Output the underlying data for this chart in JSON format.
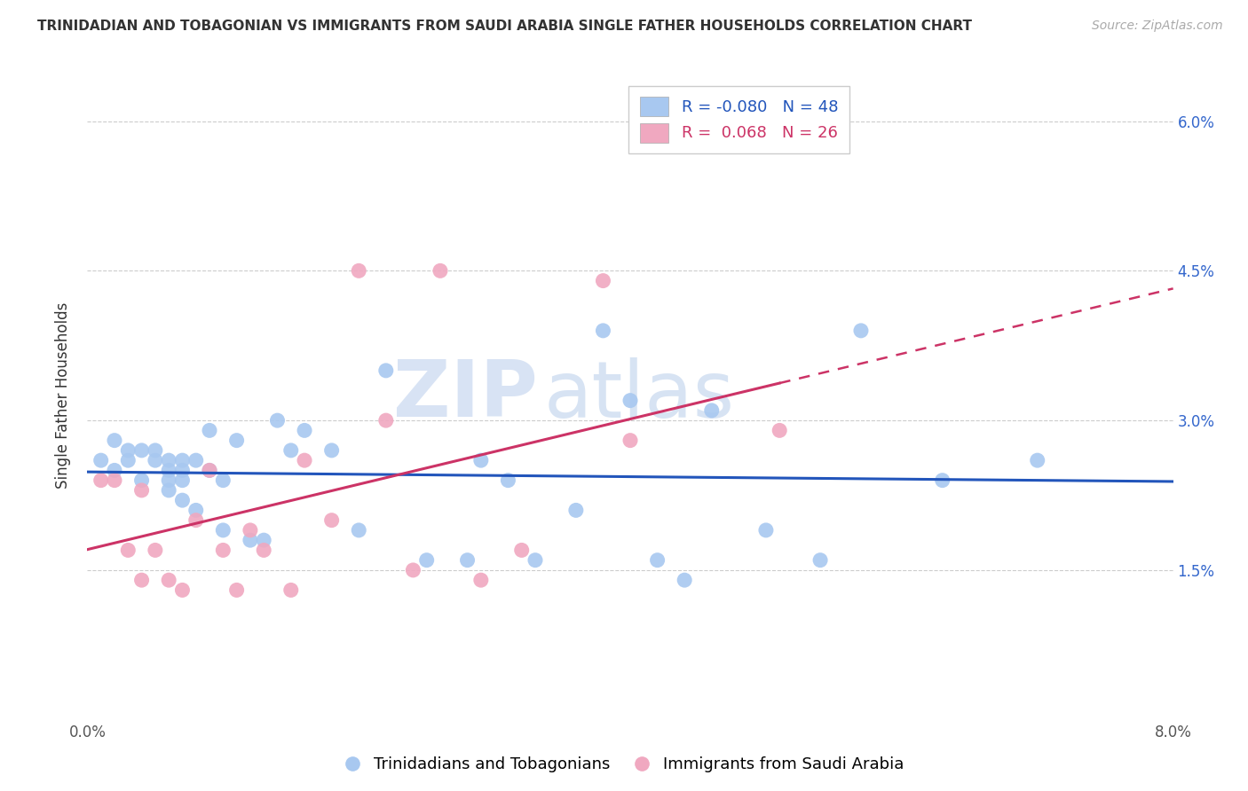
{
  "title": "TRINIDADIAN AND TOBAGONIAN VS IMMIGRANTS FROM SAUDI ARABIA SINGLE FATHER HOUSEHOLDS CORRELATION CHART",
  "source": "Source: ZipAtlas.com",
  "ylabel": "Single Father Households",
  "blue_R": -0.08,
  "blue_N": 48,
  "pink_R": 0.068,
  "pink_N": 26,
  "blue_color": "#a8c8f0",
  "pink_color": "#f0a8c0",
  "blue_line_color": "#2255bb",
  "pink_line_color": "#cc3366",
  "watermark_zip": "ZIP",
  "watermark_atlas": "atlas",
  "legend_blue_label": "Trinidadians and Tobagonians",
  "legend_pink_label": "Immigrants from Saudi Arabia",
  "blue_points_x": [
    0.001,
    0.002,
    0.002,
    0.003,
    0.003,
    0.004,
    0.004,
    0.005,
    0.005,
    0.006,
    0.006,
    0.006,
    0.006,
    0.007,
    0.007,
    0.007,
    0.007,
    0.008,
    0.008,
    0.009,
    0.009,
    0.01,
    0.01,
    0.011,
    0.012,
    0.013,
    0.014,
    0.015,
    0.016,
    0.018,
    0.02,
    0.022,
    0.025,
    0.028,
    0.029,
    0.031,
    0.033,
    0.036,
    0.038,
    0.04,
    0.042,
    0.044,
    0.046,
    0.05,
    0.054,
    0.057,
    0.063,
    0.07
  ],
  "blue_points_y": [
    0.026,
    0.025,
    0.028,
    0.026,
    0.027,
    0.024,
    0.027,
    0.026,
    0.027,
    0.024,
    0.026,
    0.025,
    0.023,
    0.024,
    0.026,
    0.025,
    0.022,
    0.021,
    0.026,
    0.029,
    0.025,
    0.024,
    0.019,
    0.028,
    0.018,
    0.018,
    0.03,
    0.027,
    0.029,
    0.027,
    0.019,
    0.035,
    0.016,
    0.016,
    0.026,
    0.024,
    0.016,
    0.021,
    0.039,
    0.032,
    0.016,
    0.014,
    0.031,
    0.019,
    0.016,
    0.039,
    0.024,
    0.026
  ],
  "pink_points_x": [
    0.001,
    0.002,
    0.003,
    0.004,
    0.004,
    0.005,
    0.006,
    0.007,
    0.008,
    0.009,
    0.01,
    0.011,
    0.012,
    0.013,
    0.015,
    0.016,
    0.018,
    0.02,
    0.022,
    0.024,
    0.026,
    0.029,
    0.032,
    0.038,
    0.04,
    0.051
  ],
  "pink_points_y": [
    0.024,
    0.024,
    0.017,
    0.023,
    0.014,
    0.017,
    0.014,
    0.013,
    0.02,
    0.025,
    0.017,
    0.013,
    0.019,
    0.017,
    0.013,
    0.026,
    0.02,
    0.045,
    0.03,
    0.015,
    0.045,
    0.014,
    0.017,
    0.044,
    0.028,
    0.029
  ],
  "background_color": "#ffffff",
  "grid_color": "#cccccc",
  "xlim": [
    0.0,
    0.08
  ],
  "ylim": [
    0.0,
    0.065
  ],
  "yticks": [
    0.015,
    0.03,
    0.045,
    0.06
  ],
  "ytick_labels": [
    "1.5%",
    "3.0%",
    "4.5%",
    "6.0%"
  ],
  "xticks": [
    0.0,
    0.02,
    0.04,
    0.06,
    0.08
  ],
  "xtick_labels": [
    "0.0%",
    "",
    "",
    "",
    "8.0%"
  ]
}
